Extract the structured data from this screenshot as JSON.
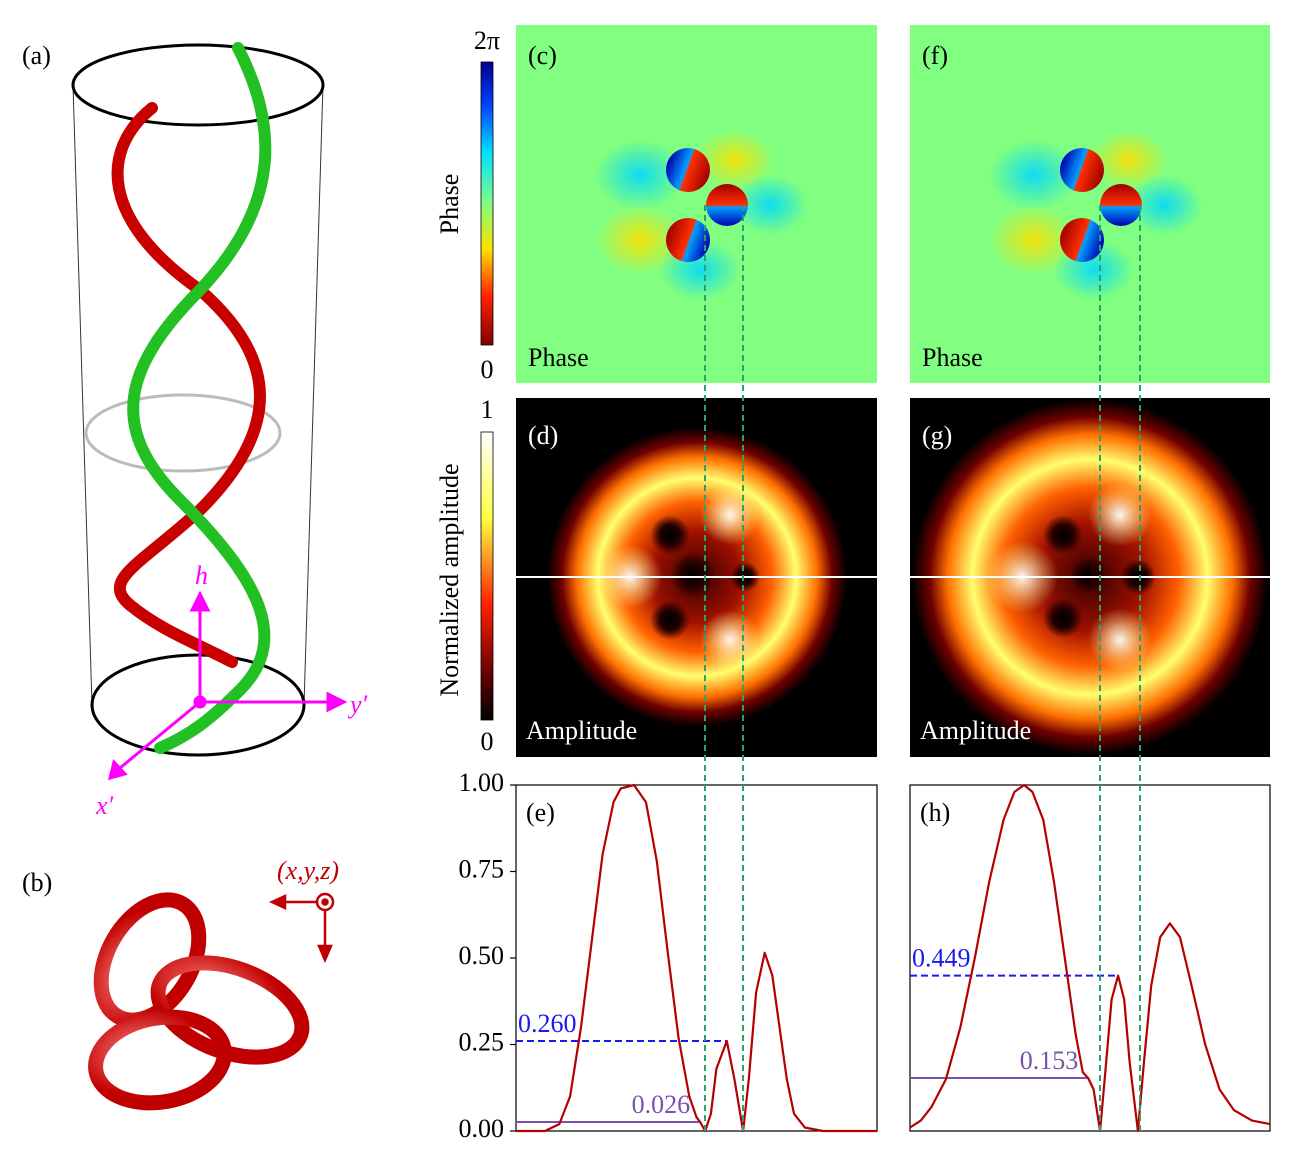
{
  "figure": {
    "panel_labels": {
      "a": "(a)",
      "b": "(b)",
      "c": "(c)",
      "d": "(d)",
      "f": "(f)",
      "g": "(g)"
    },
    "axes_3d": {
      "h": "h",
      "y": "y′",
      "x": "x′"
    },
    "knot_frame": "(x,y,z)",
    "phase_colorbar": {
      "label": "Phase",
      "max": "2π",
      "min": 0
    },
    "amplitude_colorbar": {
      "label": "Normalized amplitude",
      "max": 1,
      "min": 0
    },
    "image_labels": {
      "c": "Phase",
      "d": "Amplitude",
      "f": "Phase",
      "g": "Amplitude"
    }
  },
  "chart_data": [
    {
      "type": "line",
      "label": "(e)",
      "x": [
        0,
        8,
        12,
        15,
        18,
        21,
        24,
        27,
        29,
        32.7,
        36,
        39,
        42,
        45,
        48,
        50,
        51,
        52.4,
        54,
        55.5,
        58.4,
        60.5,
        62.9,
        64.5,
        66.5,
        68.9,
        71,
        73,
        75,
        77,
        80,
        85,
        100
      ],
      "values": [
        0,
        0,
        0.02,
        0.1,
        0.3,
        0.55,
        0.8,
        0.95,
        0.99,
        1.0,
        0.95,
        0.78,
        0.52,
        0.27,
        0.1,
        0.04,
        0.026,
        0,
        0.05,
        0.18,
        0.26,
        0.15,
        0,
        0.15,
        0.4,
        0.515,
        0.45,
        0.3,
        0.15,
        0.05,
        0.01,
        0,
        0
      ],
      "color": "#b40000",
      "xlim": [
        0,
        100
      ],
      "ylim": [
        0,
        1
      ],
      "yticks": [
        {
          "value": 0,
          "label": "0.00"
        },
        {
          "value": 0.25,
          "label": "0.25"
        },
        {
          "value": 0.5,
          "label": "0.50"
        },
        {
          "value": 0.75,
          "label": "0.75"
        },
        {
          "value": 1,
          "label": "1.00"
        }
      ],
      "annotations": [
        {
          "y": 0.26,
          "label": "0.260",
          "x_end": 58.4,
          "color": "#1a1aee",
          "dashed": true
        },
        {
          "y": 0.026,
          "label": "0.026",
          "x_end": 51,
          "color": "#7b52ab",
          "dashed": false
        }
      ]
    },
    {
      "type": "line",
      "label": "(h)",
      "x": [
        0,
        3,
        6,
        10,
        14,
        18,
        22,
        26,
        29,
        31.7,
        34,
        37,
        40,
        43,
        46,
        48,
        49.5,
        51,
        52.8,
        54.5,
        56,
        57.8,
        59.5,
        61,
        63.3,
        65,
        67,
        69.5,
        72.2,
        75,
        78,
        82,
        86,
        90,
        95,
        100
      ],
      "values": [
        0.01,
        0.03,
        0.07,
        0.15,
        0.3,
        0.5,
        0.72,
        0.9,
        0.98,
        1.0,
        0.98,
        0.9,
        0.72,
        0.5,
        0.28,
        0.17,
        0.153,
        0.12,
        0,
        0.2,
        0.38,
        0.449,
        0.38,
        0.2,
        0,
        0.2,
        0.42,
        0.56,
        0.6,
        0.56,
        0.43,
        0.25,
        0.12,
        0.06,
        0.03,
        0.02
      ],
      "color": "#b40000",
      "xlim": [
        0,
        100
      ],
      "ylim": [
        0,
        1
      ],
      "annotations": [
        {
          "y": 0.449,
          "label": "0.449",
          "x_end": 57.8,
          "color": "#1a1aee",
          "dashed": true
        },
        {
          "y": 0.153,
          "label": "0.153",
          "x_end": 49.5,
          "color": "#7b52ab",
          "dashed": false
        }
      ]
    }
  ]
}
